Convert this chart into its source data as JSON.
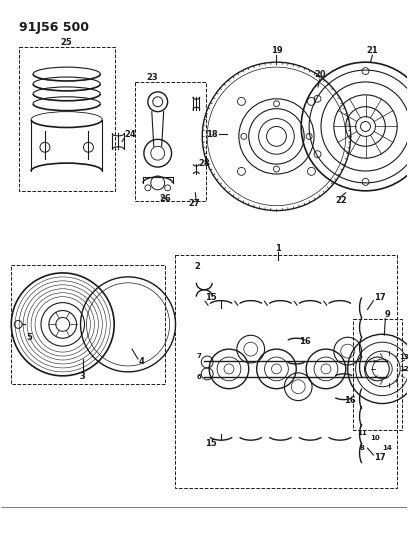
{
  "title": "91J56 500",
  "bg_color": "#ffffff",
  "line_color": "#1a1a1a",
  "fig_width": 4.1,
  "fig_height": 5.33,
  "dpi": 100
}
